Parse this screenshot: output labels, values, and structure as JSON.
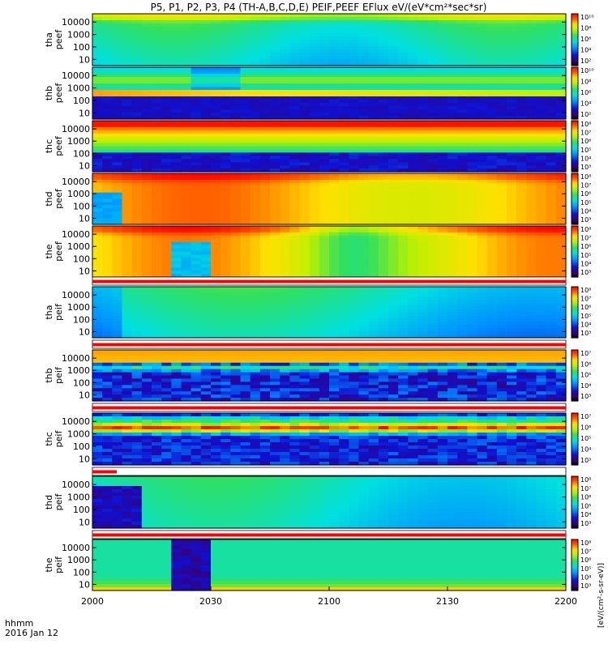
{
  "chart_data": {
    "type": "heatmap",
    "title": "P5, P1, P2, P3, P4 (TH-A,B,C,D,E) PEIF,PEEF EFlux eV/(eV*cm²*sec*sr)",
    "x_ticks": [
      "2000",
      "2030",
      "2100",
      "2130",
      "2200"
    ],
    "x_label_lines": [
      "hhmm",
      "2016 Jan 12"
    ],
    "y_ticks": [
      "10000",
      "1000",
      "100",
      "10"
    ],
    "colorbar_label": "[eV/(cm²-s-sr-eV)]",
    "panels": [
      {
        "name": "tha peef",
        "label": [
          "tha",
          "peef"
        ],
        "cb_ticks": [
          "10¹⁰",
          "10⁸",
          "10⁶",
          "10⁴",
          "10²"
        ]
      },
      {
        "name": "thb peef",
        "label": [
          "thb",
          "peef"
        ],
        "cb_ticks": [
          "10¹⁰",
          "10⁸",
          "10⁶",
          "10⁴",
          "10²"
        ]
      },
      {
        "name": "thc peef",
        "label": [
          "thc",
          "peef"
        ],
        "cb_ticks": [
          "10⁸",
          "10⁷",
          "10⁶",
          "10⁵",
          "10⁴",
          "10³"
        ]
      },
      {
        "name": "thd peef",
        "label": [
          "thd",
          "peef"
        ],
        "cb_ticks": [
          "10⁸",
          "10⁷",
          "10⁶",
          "10⁵",
          "10⁴",
          "10³"
        ]
      },
      {
        "name": "the peef",
        "label": [
          "the",
          "peef"
        ],
        "cb_ticks": [
          "10⁸",
          "10⁷",
          "10⁶",
          "10⁵",
          "10⁴",
          "10³"
        ]
      },
      {
        "name": "tha peif",
        "label": [
          "tha",
          "peif"
        ],
        "cb_ticks": [
          "10⁸",
          "10⁷",
          "10⁶",
          "10⁵",
          "10⁴",
          "10³"
        ]
      },
      {
        "name": "thb peif",
        "label": [
          "thb",
          "peif"
        ],
        "cb_ticks": [
          "10⁷",
          "10⁶",
          "10⁵",
          "10⁴",
          "10³"
        ]
      },
      {
        "name": "thc peif",
        "label": [
          "thc",
          "peif"
        ],
        "cb_ticks": [
          "10⁷",
          "10⁶",
          "10⁵",
          "10⁴",
          "10³"
        ]
      },
      {
        "name": "thd peif",
        "label": [
          "thd",
          "peif"
        ],
        "cb_ticks": [
          "10⁸",
          "10⁷",
          "10⁶",
          "10⁵",
          "10⁴",
          "10³"
        ]
      },
      {
        "name": "the peif",
        "label": [
          "the",
          "peif"
        ],
        "cb_ticks": [
          "10⁸",
          "10⁷",
          "10⁶",
          "10⁵",
          "10⁴",
          "10³"
        ]
      }
    ]
  }
}
